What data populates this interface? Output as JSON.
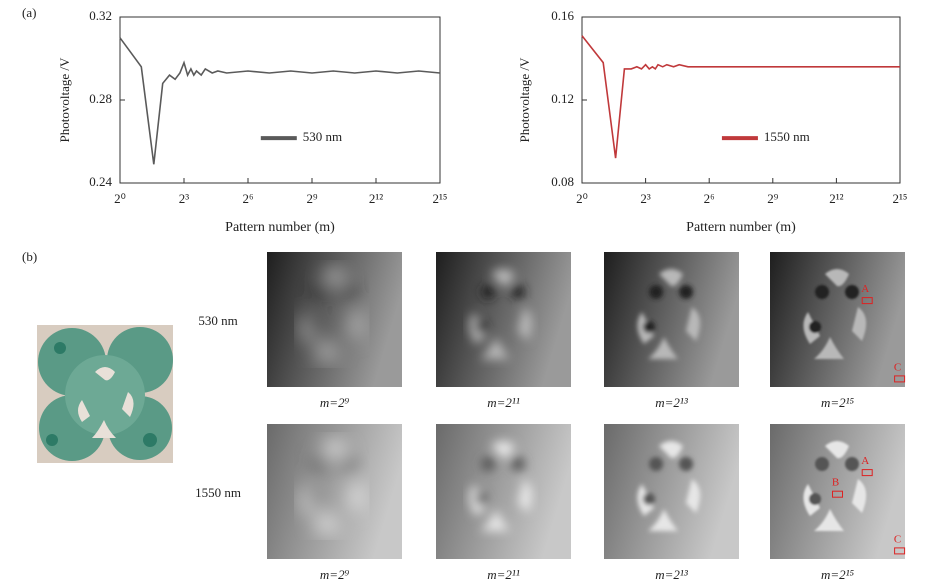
{
  "panel_labels": [
    "(a)",
    "(b)"
  ],
  "chart_data": [
    {
      "type": "line",
      "xlabel": "Pattern number (m)",
      "ylabel": "Photovoltage /V",
      "xscale": "log2",
      "xlim": [
        1,
        32768
      ],
      "xticks": [
        {
          "value": 1,
          "label": "2⁰"
        },
        {
          "value": 8,
          "label": "2³"
        },
        {
          "value": 64,
          "label": "2⁶"
        },
        {
          "value": 512,
          "label": "2⁹"
        },
        {
          "value": 4096,
          "label": "2¹²"
        },
        {
          "value": 32768,
          "label": "2¹⁵"
        }
      ],
      "ylim": [
        0.24,
        0.32
      ],
      "yticks": [
        0.24,
        0.28,
        0.32
      ],
      "legend": "center",
      "x": [
        1,
        2,
        3,
        4,
        5,
        6,
        7,
        8,
        9,
        10,
        11,
        12,
        14,
        16,
        20,
        24,
        32,
        64,
        128,
        256,
        512,
        1024,
        2048,
        4096,
        8192,
        16384,
        32768
      ],
      "series": [
        {
          "name": "530 nm",
          "color": "#5a5a5a",
          "values": [
            0.31,
            0.296,
            0.249,
            0.288,
            0.292,
            0.29,
            0.293,
            0.298,
            0.292,
            0.295,
            0.292,
            0.294,
            0.292,
            0.295,
            0.293,
            0.294,
            0.293,
            0.294,
            0.293,
            0.294,
            0.293,
            0.294,
            0.293,
            0.294,
            0.293,
            0.294,
            0.293
          ]
        }
      ]
    },
    {
      "type": "line",
      "xlabel": "Pattern number (m)",
      "ylabel": "Photovoltage /V",
      "xscale": "log2",
      "xlim": [
        1,
        32768
      ],
      "xticks": [
        {
          "value": 1,
          "label": "2⁰"
        },
        {
          "value": 8,
          "label": "2³"
        },
        {
          "value": 64,
          "label": "2⁶"
        },
        {
          "value": 512,
          "label": "2⁹"
        },
        {
          "value": 4096,
          "label": "2¹²"
        },
        {
          "value": 32768,
          "label": "2¹⁵"
        }
      ],
      "ylim": [
        0.08,
        0.16
      ],
      "yticks": [
        0.08,
        0.12,
        0.16
      ],
      "legend": "center",
      "x": [
        1,
        2,
        3,
        4,
        5,
        6,
        7,
        8,
        9,
        10,
        11,
        12,
        14,
        16,
        20,
        24,
        32,
        64,
        128,
        256,
        512,
        1024,
        2048,
        4096,
        8192,
        16384,
        32768
      ],
      "series": [
        {
          "name": "1550 nm",
          "color": "#c0393b",
          "values": [
            0.151,
            0.138,
            0.092,
            0.135,
            0.135,
            0.136,
            0.135,
            0.137,
            0.135,
            0.136,
            0.135,
            0.137,
            0.136,
            0.137,
            0.136,
            0.137,
            0.136,
            0.136,
            0.136,
            0.136,
            0.136,
            0.136,
            0.136,
            0.136,
            0.136,
            0.136,
            0.136
          ]
        }
      ]
    }
  ],
  "image_grid": {
    "rows": [
      {
        "label": "530 nm",
        "captions": [
          "m=2⁹",
          "m=2¹¹",
          "m=2¹³",
          "m=2¹⁵"
        ],
        "markers": [
          "A",
          "C"
        ]
      },
      {
        "label": "1550 nm",
        "captions": [
          "m=2⁹",
          "m=2¹¹",
          "m=2¹³",
          "m=2¹⁵"
        ],
        "markers": [
          "A",
          "B",
          "C"
        ]
      }
    ]
  }
}
